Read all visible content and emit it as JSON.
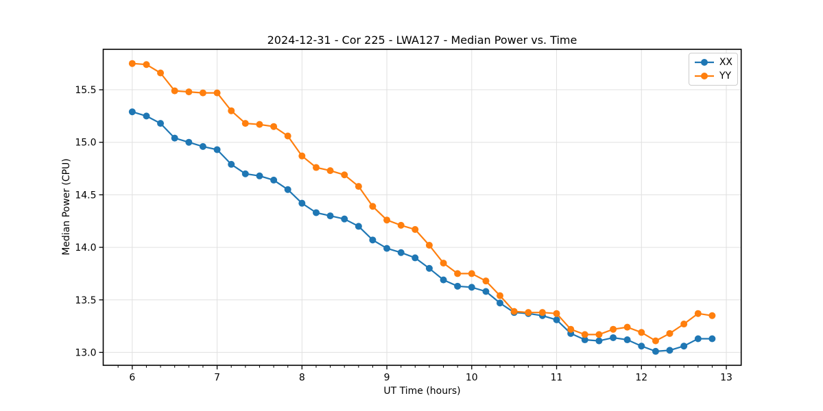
{
  "chart_data": {
    "type": "line",
    "title": "2024-12-31 - Cor 225 - LWA127 - Median Power vs. Time",
    "xlabel": "UT Time (hours)",
    "ylabel": "Median Power (CPU)",
    "xlim": [
      5.658,
      13.175
    ],
    "ylim": [
      12.877,
      15.885
    ],
    "xticks": [
      6,
      7,
      8,
      9,
      10,
      11,
      12,
      13
    ],
    "xtick_labels": [
      "6",
      "7",
      "8",
      "9",
      "10",
      "11",
      "12",
      "13"
    ],
    "yticks": [
      13.0,
      13.5,
      14.0,
      14.5,
      15.0,
      15.5
    ],
    "ytick_labels": [
      "13.0",
      "13.5",
      "14.0",
      "14.5",
      "15.0",
      "15.5"
    ],
    "minor_xtick_step": 0.16667,
    "grid": true,
    "grid_color": "#e0e0e0",
    "legend_position": "upper right",
    "x": [
      6.0,
      6.167,
      6.333,
      6.5,
      6.667,
      6.833,
      7.0,
      7.167,
      7.333,
      7.5,
      7.667,
      7.833,
      8.0,
      8.167,
      8.333,
      8.5,
      8.667,
      8.833,
      9.0,
      9.167,
      9.333,
      9.5,
      9.667,
      9.833,
      10.0,
      10.167,
      10.333,
      10.5,
      10.667,
      10.833,
      11.0,
      11.167,
      11.333,
      11.5,
      11.667,
      11.833,
      12.0,
      12.167,
      12.333,
      12.5,
      12.667,
      12.833
    ],
    "series": [
      {
        "name": "XX",
        "color": "#1f77b4",
        "marker": "circle",
        "values": [
          15.29,
          15.25,
          15.18,
          15.04,
          15.0,
          14.96,
          14.93,
          14.79,
          14.7,
          14.68,
          14.64,
          14.55,
          14.42,
          14.33,
          14.3,
          14.27,
          14.2,
          14.07,
          13.99,
          13.95,
          13.9,
          13.8,
          13.69,
          13.63,
          13.62,
          13.58,
          13.47,
          13.38,
          13.37,
          13.35,
          13.31,
          13.18,
          13.12,
          13.11,
          13.14,
          13.12,
          13.06,
          13.01,
          13.02,
          13.06,
          13.13,
          13.13
        ]
      },
      {
        "name": "YY",
        "color": "#ff7f0e",
        "marker": "circle",
        "values": [
          15.75,
          15.74,
          15.66,
          15.49,
          15.48,
          15.47,
          15.47,
          15.3,
          15.18,
          15.17,
          15.15,
          15.06,
          14.87,
          14.76,
          14.73,
          14.69,
          14.58,
          14.39,
          14.26,
          14.21,
          14.17,
          14.02,
          13.85,
          13.75,
          13.75,
          13.68,
          13.54,
          13.39,
          13.38,
          13.38,
          13.37,
          13.22,
          13.17,
          13.17,
          13.22,
          13.24,
          13.19,
          13.11,
          13.18,
          13.27,
          13.37,
          13.35
        ]
      }
    ]
  }
}
